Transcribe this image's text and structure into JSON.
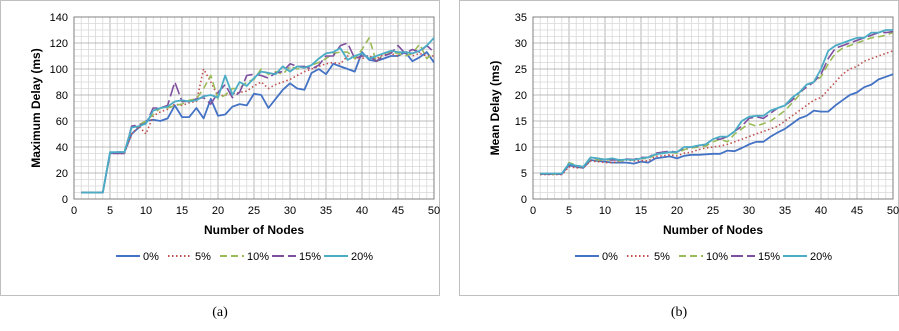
{
  "captions": [
    "(a)",
    "(b)"
  ],
  "chart_data": [
    {
      "type": "line",
      "title": "",
      "xlabel": "Number of Nodes",
      "ylabel": "Maximum Delay (ms)",
      "xlim": [
        0,
        50
      ],
      "ylim": [
        0,
        140
      ],
      "xticks": [
        0,
        5,
        10,
        15,
        20,
        25,
        30,
        35,
        40,
        45,
        50
      ],
      "yticks": [
        0,
        20,
        40,
        60,
        80,
        100,
        120,
        140
      ],
      "grid": true,
      "legend": "bottom",
      "x": [
        1,
        2,
        3,
        4,
        5,
        6,
        7,
        8,
        9,
        10,
        11,
        12,
        13,
        14,
        15,
        16,
        17,
        18,
        19,
        20,
        21,
        22,
        23,
        24,
        25,
        26,
        27,
        28,
        29,
        30,
        31,
        32,
        33,
        34,
        35,
        36,
        37,
        38,
        39,
        40,
        41,
        42,
        43,
        44,
        45,
        46,
        47,
        48,
        49,
        50
      ],
      "series": [
        {
          "name": "0%",
          "color": "#4472C4",
          "dash": "solid",
          "values": [
            5,
            5,
            5,
            5,
            35,
            36,
            36,
            50,
            55,
            60,
            61,
            60,
            62,
            72,
            63,
            63,
            70,
            62,
            77,
            64,
            65,
            71,
            73,
            72,
            81,
            80,
            70,
            77,
            84,
            89,
            85,
            84,
            97,
            100,
            96,
            104,
            102,
            100,
            98,
            113,
            107,
            106,
            108,
            110,
            110,
            113,
            106,
            109,
            113,
            105
          ]
        },
        {
          "name": "5%",
          "color": "#C0504D",
          "dash": "dots",
          "values": [
            5,
            5,
            5,
            5,
            35,
            35,
            35,
            50,
            56,
            50,
            64,
            67,
            69,
            73,
            72,
            74,
            75,
            100,
            90,
            79,
            80,
            81,
            82,
            83,
            87,
            90,
            85,
            88,
            90,
            92,
            95,
            98,
            100,
            102,
            104,
            105,
            104,
            110,
            108,
            108,
            110,
            108,
            111,
            112,
            110,
            114,
            110,
            112,
            110,
            110
          ]
        },
        {
          "name": "10%",
          "color": "#9BBB59",
          "dash": "dash",
          "values": [
            5,
            5,
            5,
            5,
            35,
            36,
            36,
            55,
            57,
            60,
            65,
            70,
            70,
            72,
            73,
            76,
            77,
            85,
            95,
            77,
            80,
            85,
            85,
            90,
            92,
            100,
            96,
            98,
            96,
            102,
            100,
            101,
            103,
            105,
            108,
            112,
            113,
            113,
            108,
            115,
            124,
            105,
            112,
            113,
            112,
            110,
            112,
            119,
            108,
            113
          ]
        },
        {
          "name": "15%",
          "color": "#7F4F9F",
          "dash": "longdash",
          "values": [
            5,
            5,
            5,
            5,
            35,
            35,
            35,
            56,
            57,
            58,
            70,
            70,
            72,
            90,
            75,
            75,
            77,
            78,
            73,
            82,
            88,
            78,
            82,
            95,
            96,
            95,
            93,
            97,
            98,
            104,
            102,
            102,
            100,
            103,
            110,
            110,
            118,
            120,
            108,
            110,
            110,
            106,
            110,
            112,
            118,
            112,
            115,
            113,
            118,
            113
          ]
        },
        {
          "name": "20%",
          "color": "#4BACC6",
          "dash": "solid",
          "values": [
            5,
            5,
            5,
            5,
            36,
            36,
            36,
            55,
            56,
            58,
            68,
            70,
            71,
            75,
            76,
            75,
            76,
            79,
            80,
            78,
            95,
            80,
            90,
            87,
            93,
            98,
            97,
            96,
            102,
            98,
            102,
            101,
            103,
            108,
            112,
            113,
            116,
            107,
            110,
            112,
            108,
            110,
            112,
            114,
            113,
            113,
            112,
            114,
            118,
            124
          ]
        }
      ]
    },
    {
      "type": "line",
      "title": "",
      "xlabel": "Number of Nodes",
      "ylabel": "Mean Delay (ms)",
      "xlim": [
        0,
        50
      ],
      "ylim": [
        0,
        35
      ],
      "xticks": [
        0,
        5,
        10,
        15,
        20,
        25,
        30,
        35,
        40,
        45,
        50
      ],
      "yticks": [
        0,
        5,
        10,
        15,
        20,
        25,
        30,
        35
      ],
      "grid": true,
      "legend": "bottom",
      "x": [
        1,
        2,
        3,
        4,
        5,
        6,
        7,
        8,
        9,
        10,
        11,
        12,
        13,
        14,
        15,
        16,
        17,
        18,
        19,
        20,
        21,
        22,
        23,
        24,
        25,
        26,
        27,
        28,
        29,
        30,
        31,
        32,
        33,
        34,
        35,
        36,
        37,
        38,
        39,
        40,
        41,
        42,
        43,
        44,
        45,
        46,
        47,
        48,
        49,
        50
      ],
      "series": [
        {
          "name": "0%",
          "color": "#4472C4",
          "dash": "solid",
          "values": [
            4.8,
            4.8,
            4.8,
            4.8,
            6.5,
            6.2,
            6.0,
            7.5,
            7.3,
            7.2,
            7.0,
            7.0,
            7.0,
            6.8,
            7.2,
            7.0,
            7.8,
            8.0,
            8.2,
            7.8,
            8.3,
            8.5,
            8.5,
            8.6,
            8.7,
            8.7,
            9.3,
            9.2,
            9.8,
            10.5,
            11.0,
            11.0,
            12.0,
            12.8,
            13.5,
            14.5,
            15.5,
            16.0,
            17.0,
            16.8,
            16.8,
            18.0,
            19.0,
            20.0,
            20.5,
            21.5,
            22.0,
            23.0,
            23.5,
            24.0
          ]
        },
        {
          "name": "5%",
          "color": "#C0504D",
          "dash": "dots",
          "values": [
            4.7,
            4.7,
            4.7,
            4.7,
            6.2,
            6.0,
            6.0,
            7.3,
            7.2,
            7.0,
            7.0,
            7.2,
            7.5,
            7.3,
            7.4,
            7.3,
            8.2,
            8.3,
            8.5,
            8.3,
            8.8,
            9.0,
            9.5,
            9.8,
            10.0,
            10.2,
            10.5,
            11.0,
            11.5,
            12.0,
            12.5,
            13.0,
            13.5,
            14.0,
            15.0,
            16.0,
            17.0,
            18.0,
            19.0,
            19.5,
            21.0,
            22.5,
            24.0,
            25.0,
            25.5,
            26.5,
            27.0,
            27.5,
            28.0,
            28.5
          ]
        },
        {
          "name": "10%",
          "color": "#9BBB59",
          "dash": "dash",
          "values": [
            4.8,
            4.8,
            4.8,
            4.8,
            7.0,
            6.5,
            6.2,
            7.8,
            7.5,
            7.5,
            7.5,
            7.3,
            7.5,
            7.5,
            7.8,
            7.8,
            8.5,
            8.8,
            9.0,
            8.8,
            9.5,
            9.8,
            10.0,
            10.2,
            11.0,
            11.5,
            11.0,
            12.5,
            13.5,
            14.5,
            14.0,
            14.5,
            15.0,
            16.0,
            17.0,
            18.5,
            20.0,
            22.0,
            22.5,
            23.5,
            26.0,
            28.0,
            29.0,
            29.5,
            30.0,
            30.5,
            31.0,
            31.2,
            31.5,
            32.0
          ]
        },
        {
          "name": "15%",
          "color": "#7F4F9F",
          "dash": "longdash",
          "values": [
            4.8,
            4.8,
            4.8,
            4.8,
            6.8,
            6.3,
            6.2,
            8.0,
            7.8,
            7.6,
            7.5,
            7.5,
            7.7,
            7.6,
            8.0,
            8.0,
            8.8,
            9.0,
            9.2,
            9.0,
            9.8,
            10.0,
            10.2,
            10.5,
            11.5,
            11.5,
            12.0,
            13.0,
            14.0,
            15.5,
            15.8,
            15.5,
            16.5,
            17.5,
            18.0,
            19.0,
            20.5,
            21.5,
            22.5,
            24.0,
            27.0,
            29.0,
            29.5,
            30.0,
            30.5,
            31.0,
            31.5,
            32.0,
            32.0,
            32.2
          ]
        },
        {
          "name": "20%",
          "color": "#4BACC6",
          "dash": "solid",
          "values": [
            4.9,
            4.9,
            4.9,
            4.9,
            6.8,
            6.4,
            6.2,
            8.0,
            7.8,
            7.6,
            7.8,
            7.5,
            7.6,
            7.5,
            7.8,
            8.0,
            8.6,
            8.8,
            9.0,
            9.0,
            10.0,
            10.0,
            10.3,
            10.5,
            11.5,
            12.0,
            12.0,
            13.0,
            15.0,
            15.8,
            16.0,
            16.0,
            17.0,
            17.5,
            18.0,
            19.5,
            20.5,
            22.0,
            22.5,
            25.0,
            28.5,
            29.5,
            30.0,
            30.5,
            31.0,
            31.0,
            32.0,
            32.0,
            32.5,
            32.5
          ]
        }
      ]
    }
  ]
}
